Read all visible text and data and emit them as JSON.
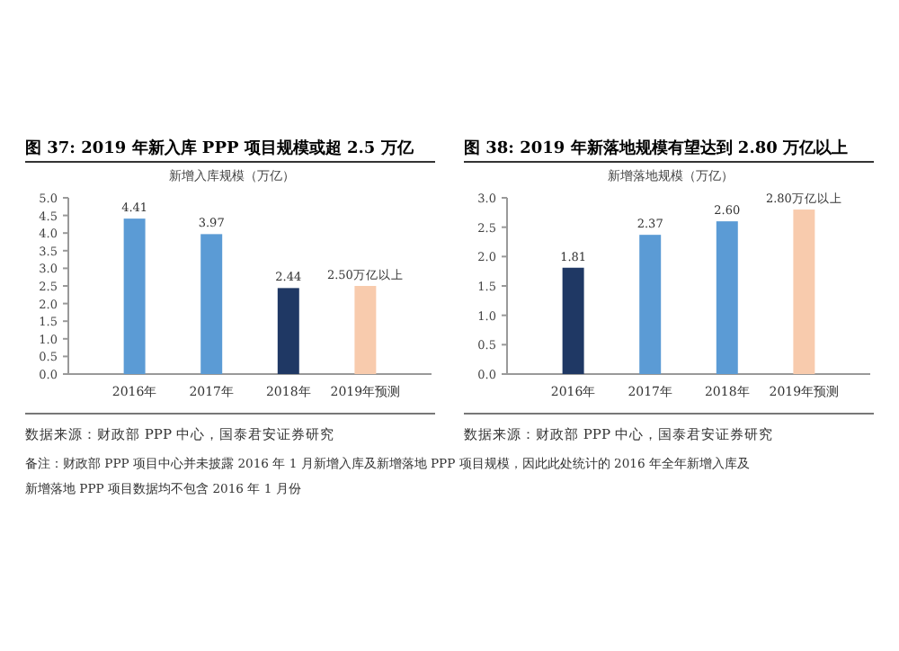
{
  "chart_data": [
    {
      "type": "bar",
      "title": "图 37:  2019 年新入库 PPP 项目规模或超 2.5 万亿",
      "categories": [
        "2016年",
        "2017年",
        "2018年",
        "2019年预测"
      ],
      "values": [
        4.41,
        3.97,
        2.44,
        2.5
      ],
      "colors": [
        "#5b9bd5",
        "#5b9bd5",
        "#1f3864",
        "#f8cbad"
      ],
      "value_labels": [
        "4.41",
        "3.97",
        "2.44",
        "2.50万亿以上"
      ],
      "ylim": [
        0,
        5
      ],
      "yticks": [
        {
          "value": 0,
          "label": "0.0"
        },
        {
          "value": 0.5,
          "label": "0.5"
        },
        {
          "value": 1,
          "label": "1.0"
        },
        {
          "value": 1.5,
          "label": "1.5"
        },
        {
          "value": 2,
          "label": "2.0"
        },
        {
          "value": 2.5,
          "label": "2.5"
        },
        {
          "value": 3,
          "label": "3.0"
        },
        {
          "value": 3.5,
          "label": "3.5"
        },
        {
          "value": 4,
          "label": "4.0"
        },
        {
          "value": 4.5,
          "label": "4.5"
        },
        {
          "value": 5,
          "label": "5.0"
        }
      ],
      "annotations": [
        "新增入库规模（万亿）",
        "数据来源：财政部 PPP 中心，国泰君安证券研究",
        "备注：财政部 PPP 项目中心并未披露 2016 年 1 月新增入库及新增落地 PPP 项目规模，因此此处统计的 2016 年全年新增入库及新增落地 PPP 项目数据均不包含 2016 年 1 月份"
      ]
    },
    {
      "type": "bar",
      "title": "图 38:  2019 年新落地规模有望达到 2.80 万亿以上",
      "categories": [
        "2016年",
        "2017年",
        "2018年",
        "2019年预测"
      ],
      "values": [
        1.81,
        2.37,
        2.6,
        2.8
      ],
      "colors": [
        "#1f3864",
        "#5b9bd5",
        "#5b9bd5",
        "#f8cbad"
      ],
      "value_labels": [
        "1.81",
        "2.37",
        "2.60",
        "2.80万亿以上"
      ],
      "ylim": [
        0,
        3
      ],
      "yticks": [
        {
          "value": 0,
          "label": "0.0"
        },
        {
          "value": 0.5,
          "label": "0.5"
        },
        {
          "value": 1,
          "label": "1.0"
        },
        {
          "value": 1.5,
          "label": "1.5"
        },
        {
          "value": 2,
          "label": "2.0"
        },
        {
          "value": 2.5,
          "label": "2.5"
        },
        {
          "value": 3,
          "label": "3.0"
        }
      ],
      "annotations": [
        "新增落地规模（万亿）",
        "数据来源：财政部 PPP 中心，国泰君安证券研究"
      ]
    }
  ]
}
